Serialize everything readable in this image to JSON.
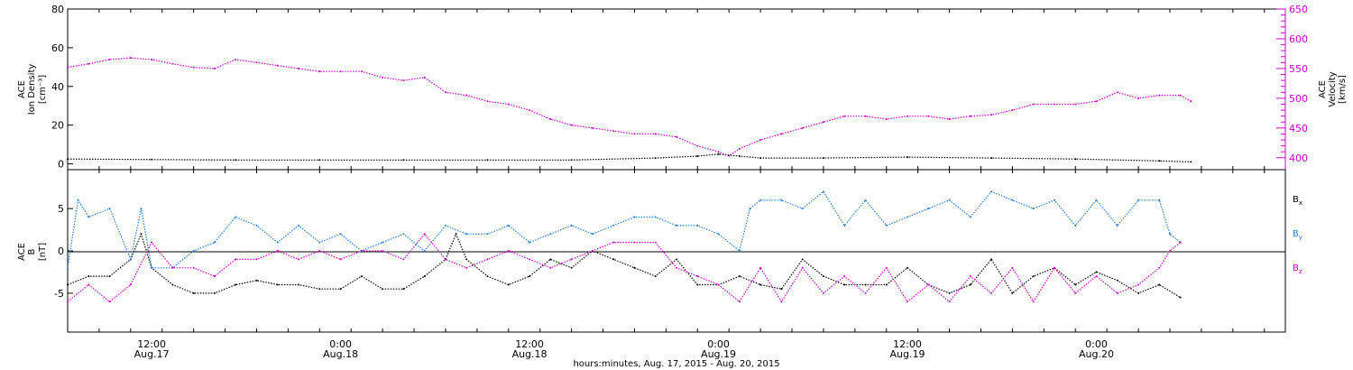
{
  "chart_data": [
    {
      "panel": "top",
      "type": "scatter",
      "left_axis": {
        "label_lines": [
          "ACE",
          "Ion Density",
          "[cm⁻³]"
        ],
        "ticks": [
          "0",
          "20",
          "40",
          "60",
          "80"
        ],
        "range": [
          -3,
          80
        ]
      },
      "right_axis": {
        "label_lines": [
          "ACE",
          "Velocity",
          "[km/s]"
        ],
        "ticks": [
          "400",
          "450",
          "500",
          "550",
          "600",
          "650"
        ],
        "range": [
          380,
          650
        ]
      },
      "series": [
        {
          "axis": "right",
          "color": "#cc00cc",
          "points": [
            [
              0.0,
              552
            ],
            [
              2.0,
              558
            ],
            [
              4.0,
              565
            ],
            [
              6.0,
              568
            ],
            [
              8.0,
              565
            ],
            [
              10.0,
              558
            ],
            [
              12.0,
              552
            ],
            [
              14.0,
              550
            ],
            [
              16.0,
              565
            ],
            [
              18.0,
              560
            ],
            [
              20.0,
              555
            ],
            [
              22.0,
              550
            ],
            [
              24.0,
              545
            ],
            [
              26.0,
              545
            ],
            [
              28.0,
              545
            ],
            [
              30.0,
              535
            ],
            [
              32.0,
              530
            ],
            [
              34.0,
              535
            ],
            [
              36.0,
              510
            ],
            [
              38.0,
              505
            ],
            [
              40.0,
              495
            ],
            [
              42.0,
              490
            ],
            [
              44.0,
              480
            ],
            [
              46.0,
              465
            ],
            [
              48.0,
              455
            ],
            [
              50.0,
              450
            ],
            [
              52.0,
              445
            ],
            [
              54.0,
              440
            ],
            [
              56.0,
              440
            ],
            [
              58.0,
              435
            ],
            [
              60.0,
              420
            ],
            [
              62.0,
              410
            ],
            [
              63.0,
              403
            ],
            [
              64.0,
              415
            ],
            [
              66.0,
              430
            ],
            [
              68.0,
              440
            ],
            [
              70.0,
              450
            ],
            [
              72.0,
              460
            ],
            [
              74.0,
              470
            ],
            [
              76.0,
              470
            ],
            [
              78.0,
              465
            ],
            [
              80.0,
              470
            ],
            [
              82.0,
              470
            ],
            [
              84.0,
              465
            ],
            [
              86.0,
              470
            ],
            [
              88.0,
              472
            ],
            [
              90.0,
              480
            ],
            [
              92.0,
              490
            ],
            [
              94.0,
              490
            ],
            [
              96.0,
              490
            ],
            [
              98.0,
              495
            ],
            [
              100.0,
              510
            ],
            [
              102.0,
              500
            ],
            [
              104.0,
              505
            ],
            [
              106.0,
              505
            ],
            [
              107.0,
              495
            ]
          ]
        },
        {
          "axis": "left",
          "color": "#000000",
          "points": [
            [
              0.0,
              2.5
            ],
            [
              8.0,
              2.2
            ],
            [
              16.0,
              2.0
            ],
            [
              24.0,
              2.0
            ],
            [
              32.0,
              2.0
            ],
            [
              40.0,
              2.0
            ],
            [
              48.0,
              2.0
            ],
            [
              56.0,
              3.0
            ],
            [
              60.0,
              4.0
            ],
            [
              62.0,
              5.0
            ],
            [
              64.0,
              4.0
            ],
            [
              66.0,
              3.0
            ],
            [
              72.0,
              3.0
            ],
            [
              80.0,
              3.5
            ],
            [
              88.0,
              3.0
            ],
            [
              96.0,
              2.5
            ],
            [
              104.0,
              1.5
            ],
            [
              107.0,
              1.0
            ]
          ]
        }
      ]
    },
    {
      "panel": "bottom",
      "type": "scatter",
      "left_axis": {
        "label_lines": [
          "ACE",
          "B",
          "[nT]"
        ],
        "ticks": [
          "-5",
          "0",
          "5"
        ],
        "range": [
          -9.6,
          9.6
        ]
      },
      "legend": [
        "Bx",
        "By",
        "Bz"
      ],
      "series": [
        {
          "name": "Bx",
          "color": "#000000",
          "points": [
            [
              0.0,
              -4.0
            ],
            [
              2.0,
              -3.0
            ],
            [
              4.0,
              -3.0
            ],
            [
              6.0,
              -1.0
            ],
            [
              7.0,
              2.0
            ],
            [
              8.0,
              -2.0
            ],
            [
              10.0,
              -4.0
            ],
            [
              12.0,
              -5.0
            ],
            [
              14.0,
              -5.0
            ],
            [
              16.0,
              -4.0
            ],
            [
              18.0,
              -3.5
            ],
            [
              20.0,
              -4.0
            ],
            [
              22.0,
              -4.0
            ],
            [
              24.0,
              -4.5
            ],
            [
              26.0,
              -4.5
            ],
            [
              28.0,
              -3.0
            ],
            [
              30.0,
              -4.5
            ],
            [
              32.0,
              -4.5
            ],
            [
              34.0,
              -3.0
            ],
            [
              36.0,
              -1.0
            ],
            [
              37.0,
              2.0
            ],
            [
              38.0,
              -1.0
            ],
            [
              40.0,
              -3.0
            ],
            [
              42.0,
              -4.0
            ],
            [
              44.0,
              -3.0
            ],
            [
              46.0,
              -1.0
            ],
            [
              48.0,
              -2.0
            ],
            [
              50.0,
              0.0
            ],
            [
              52.0,
              -1.0
            ],
            [
              54.0,
              -2.0
            ],
            [
              56.0,
              -3.0
            ],
            [
              58.0,
              -1.0
            ],
            [
              60.0,
              -4.0
            ],
            [
              62.0,
              -4.0
            ],
            [
              64.0,
              -3.0
            ],
            [
              66.0,
              -4.0
            ],
            [
              68.0,
              -4.5
            ],
            [
              70.0,
              -1.0
            ],
            [
              72.0,
              -3.0
            ],
            [
              74.0,
              -4.0
            ],
            [
              76.0,
              -4.0
            ],
            [
              78.0,
              -4.0
            ],
            [
              80.0,
              -2.0
            ],
            [
              82.0,
              -4.0
            ],
            [
              84.0,
              -5.0
            ],
            [
              86.0,
              -4.0
            ],
            [
              88.0,
              -1.0
            ],
            [
              90.0,
              -5.0
            ],
            [
              92.0,
              -3.0
            ],
            [
              94.0,
              -2.0
            ],
            [
              96.0,
              -4.0
            ],
            [
              98.0,
              -2.5
            ],
            [
              100.0,
              -3.5
            ],
            [
              102.0,
              -5.0
            ],
            [
              104.0,
              -4.0
            ],
            [
              106.0,
              -5.5
            ]
          ]
        },
        {
          "name": "By",
          "color": "#1f7fe0",
          "points": [
            [
              0.0,
              -2.0
            ],
            [
              1.0,
              6.0
            ],
            [
              2.0,
              4.0
            ],
            [
              4.0,
              5.0
            ],
            [
              6.0,
              -1.0
            ],
            [
              7.0,
              5.0
            ],
            [
              8.0,
              -2.0
            ],
            [
              10.0,
              -2.0
            ],
            [
              12.0,
              0.0
            ],
            [
              14.0,
              1.0
            ],
            [
              16.0,
              4.0
            ],
            [
              18.0,
              3.0
            ],
            [
              20.0,
              1.0
            ],
            [
              22.0,
              3.0
            ],
            [
              24.0,
              1.0
            ],
            [
              26.0,
              2.0
            ],
            [
              28.0,
              0.0
            ],
            [
              30.0,
              1.0
            ],
            [
              32.0,
              2.0
            ],
            [
              34.0,
              0.0
            ],
            [
              36.0,
              3.0
            ],
            [
              38.0,
              2.0
            ],
            [
              40.0,
              2.0
            ],
            [
              42.0,
              3.0
            ],
            [
              44.0,
              1.0
            ],
            [
              46.0,
              2.0
            ],
            [
              48.0,
              3.0
            ],
            [
              50.0,
              2.0
            ],
            [
              52.0,
              3.0
            ],
            [
              54.0,
              4.0
            ],
            [
              56.0,
              4.0
            ],
            [
              58.0,
              3.0
            ],
            [
              60.0,
              3.0
            ],
            [
              62.0,
              2.0
            ],
            [
              64.0,
              0.0
            ],
            [
              65.0,
              5.0
            ],
            [
              66.0,
              6.0
            ],
            [
              68.0,
              6.0
            ],
            [
              70.0,
              5.0
            ],
            [
              72.0,
              7.0
            ],
            [
              74.0,
              3.0
            ],
            [
              76.0,
              6.0
            ],
            [
              78.0,
              3.0
            ],
            [
              80.0,
              4.0
            ],
            [
              82.0,
              5.0
            ],
            [
              84.0,
              6.0
            ],
            [
              86.0,
              4.0
            ],
            [
              88.0,
              7.0
            ],
            [
              90.0,
              6.0
            ],
            [
              92.0,
              5.0
            ],
            [
              94.0,
              6.0
            ],
            [
              96.0,
              3.0
            ],
            [
              98.0,
              6.0
            ],
            [
              100.0,
              3.0
            ],
            [
              102.0,
              6.0
            ],
            [
              104.0,
              6.0
            ],
            [
              105.0,
              2.0
            ],
            [
              106.0,
              1.0
            ]
          ]
        },
        {
          "name": "Bz",
          "color": "#cc00cc",
          "points": [
            [
              0.0,
              -6.0
            ],
            [
              2.0,
              -4.0
            ],
            [
              4.0,
              -6.0
            ],
            [
              6.0,
              -4.0
            ],
            [
              8.0,
              1.0
            ],
            [
              10.0,
              -2.0
            ],
            [
              12.0,
              -2.0
            ],
            [
              14.0,
              -3.0
            ],
            [
              16.0,
              -1.0
            ],
            [
              18.0,
              -1.0
            ],
            [
              20.0,
              0.0
            ],
            [
              22.0,
              -1.0
            ],
            [
              24.0,
              0.0
            ],
            [
              26.0,
              -1.0
            ],
            [
              28.0,
              0.0
            ],
            [
              30.0,
              0.0
            ],
            [
              32.0,
              -1.0
            ],
            [
              34.0,
              2.0
            ],
            [
              36.0,
              -1.0
            ],
            [
              38.0,
              -2.0
            ],
            [
              40.0,
              -1.0
            ],
            [
              42.0,
              0.0
            ],
            [
              44.0,
              -1.0
            ],
            [
              46.0,
              -2.0
            ],
            [
              48.0,
              -1.0
            ],
            [
              50.0,
              0.0
            ],
            [
              52.0,
              1.0
            ],
            [
              54.0,
              1.0
            ],
            [
              56.0,
              1.0
            ],
            [
              58.0,
              -2.0
            ],
            [
              60.0,
              -3.0
            ],
            [
              62.0,
              -4.0
            ],
            [
              64.0,
              -6.0
            ],
            [
              66.0,
              -2.0
            ],
            [
              68.0,
              -6.0
            ],
            [
              70.0,
              -2.0
            ],
            [
              72.0,
              -5.0
            ],
            [
              74.0,
              -3.0
            ],
            [
              76.0,
              -5.0
            ],
            [
              78.0,
              -2.0
            ],
            [
              80.0,
              -6.0
            ],
            [
              82.0,
              -4.0
            ],
            [
              84.0,
              -6.0
            ],
            [
              86.0,
              -3.0
            ],
            [
              88.0,
              -5.0
            ],
            [
              90.0,
              -2.0
            ],
            [
              92.0,
              -6.0
            ],
            [
              94.0,
              -2.0
            ],
            [
              96.0,
              -5.0
            ],
            [
              98.0,
              -3.0
            ],
            [
              100.0,
              -5.0
            ],
            [
              102.0,
              -4.0
            ],
            [
              104.0,
              -2.0
            ],
            [
              105.0,
              0.0
            ],
            [
              106.0,
              1.0
            ]
          ]
        }
      ]
    }
  ],
  "x_axis": {
    "range": [
      0,
      116
    ],
    "ticks": [
      {
        "x": 8,
        "line1": "12:00",
        "line2": "Aug.17"
      },
      {
        "x": 26,
        "line1": "0:00",
        "line2": "Aug.18"
      },
      {
        "x": 44,
        "line1": "12:00",
        "line2": "Aug.18"
      },
      {
        "x": 62,
        "line1": "0:00",
        "line2": "Aug.19"
      },
      {
        "x": 80,
        "line1": "12:00",
        "line2": "Aug.19"
      },
      {
        "x": 98,
        "line1": "0:00",
        "line2": "Aug.20"
      }
    ],
    "title": "hours:minutes, Aug. 17, 2015 - Aug. 20, 2015"
  },
  "legend_labels": {
    "bx": "B",
    "bx_sub": "x",
    "by": "B",
    "by_sub": "y",
    "bz": "B",
    "bz_sub": "z"
  },
  "colors": {
    "black": "#000000",
    "blue": "#1f7fe0",
    "magenta": "#cc00cc",
    "axis": "#000000"
  }
}
